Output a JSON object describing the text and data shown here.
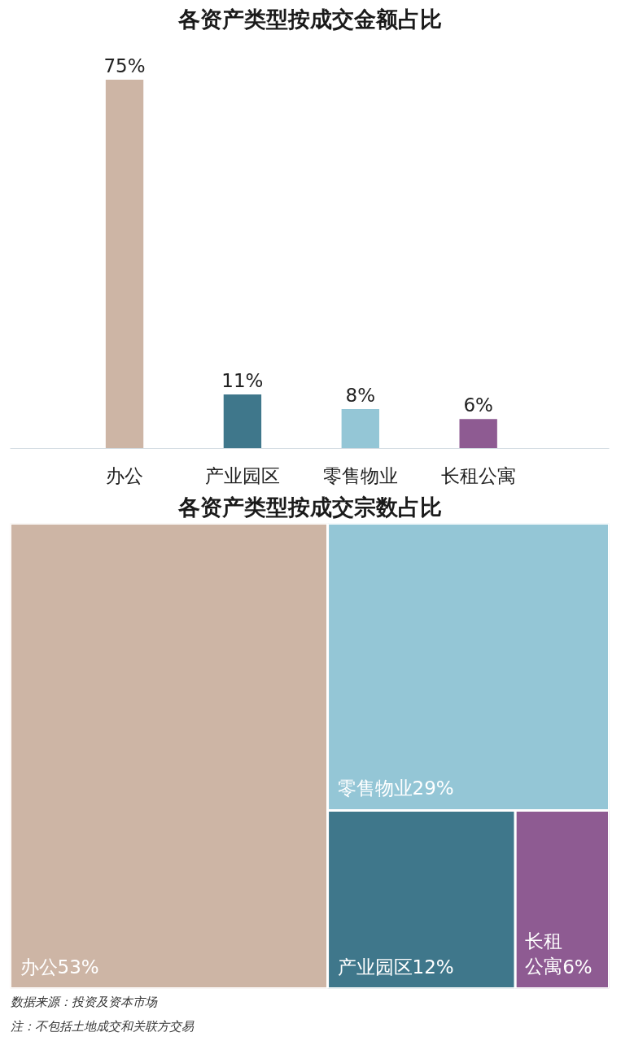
{
  "chart_data": [
    {
      "type": "bar",
      "title": "各资产类型按成交金额占比",
      "categories": [
        "办公",
        "产业园区",
        "零售物业",
        "长租公寓"
      ],
      "values": [
        75,
        11,
        8,
        6
      ],
      "colors": [
        "#cdb5a5",
        "#3f778b",
        "#94c6d6",
        "#8e5b92"
      ],
      "value_labels": [
        "75%",
        "11%",
        "8%",
        "6%"
      ]
    },
    {
      "type": "other",
      "title": "各资产类型按成交宗数占比",
      "categories": [
        "办公",
        "零售物业",
        "产业园区",
        "长租公寓"
      ],
      "values": [
        53,
        29,
        12,
        6
      ],
      "colors": [
        "#cdb5a5",
        "#94c6d6",
        "#3f778b",
        "#8e5b92"
      ],
      "value_labels": [
        "53%",
        "29%",
        "12%",
        "6%"
      ],
      "annotations": [
        "数据来源：投资及资本市场",
        "注：不包括土地成交和关联方交易"
      ]
    }
  ]
}
